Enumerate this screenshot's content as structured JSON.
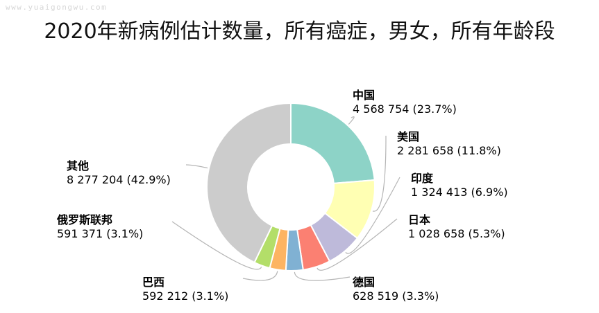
{
  "watermark": "www.yuaigongwu.com",
  "chart_data": {
    "type": "pie",
    "title": "2020年新病例估计数量，所有癌症，男女，所有年龄段",
    "slices": [
      {
        "name": "中国",
        "value": "4 568 754",
        "percent": "(23.7%)",
        "share": 23.7,
        "color": "#8dd3c7"
      },
      {
        "name": "美国",
        "value": "2 281 658",
        "percent": "(11.8%)",
        "share": 11.8,
        "color": "#ffffb3"
      },
      {
        "name": "印度",
        "value": "1 324 413",
        "percent": "(6.9%)",
        "share": 6.9,
        "color": "#bebada"
      },
      {
        "name": "日本",
        "value": "1 028 658",
        "percent": "(5.3%)",
        "share": 5.3,
        "color": "#fb8072"
      },
      {
        "name": "德国",
        "value": "628 519",
        "percent": "(3.3%)",
        "share": 3.3,
        "color": "#80b1d3"
      },
      {
        "name": "巴西",
        "value": "592 212",
        "percent": "(3.1%)",
        "share": 3.1,
        "color": "#fdb462"
      },
      {
        "name": "俄罗斯联邦",
        "value": "591 371",
        "percent": "(3.1%)",
        "share": 3.1,
        "color": "#b3de69"
      },
      {
        "name": "其他",
        "value": "8 277 204",
        "percent": "(42.9%)",
        "share": 42.9,
        "color": "#cccccc"
      }
    ]
  }
}
